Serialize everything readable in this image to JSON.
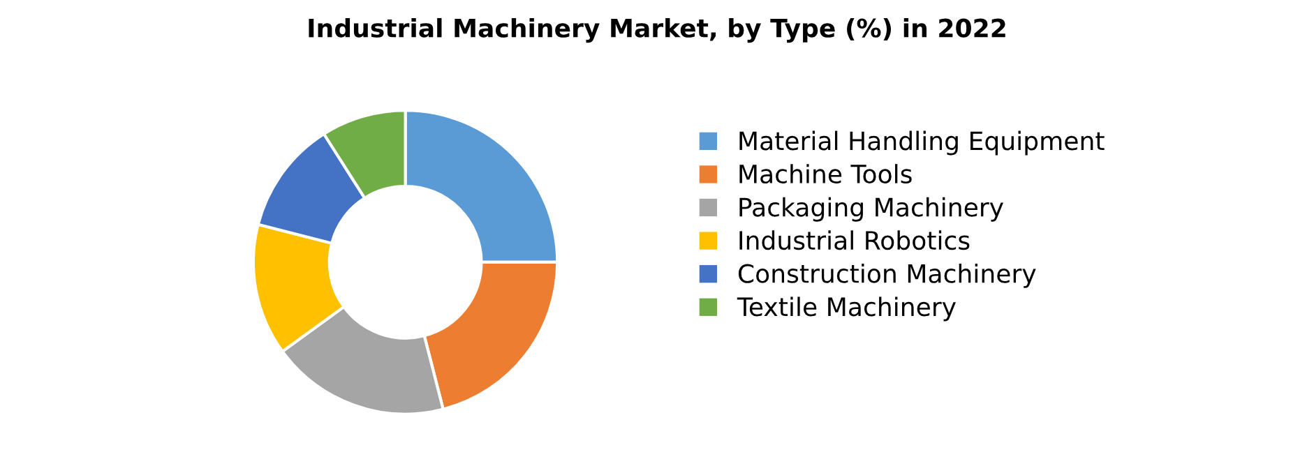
{
  "chart_data": {
    "type": "donut",
    "title": "Industrial Machinery Market, by Type (%) in 2022",
    "categories": [
      "Material Handling Equipment",
      "Machine Tools",
      "Packaging Machinery",
      "Industrial Robotics",
      "Construction Machinery",
      "Textile Machinery"
    ],
    "values": [
      25,
      21,
      19,
      14,
      12,
      9
    ],
    "colors": [
      "#5b9bd5",
      "#ed7d31",
      "#a5a5a5",
      "#ffc000",
      "#4472c4",
      "#70ad47"
    ],
    "legend": "right"
  }
}
